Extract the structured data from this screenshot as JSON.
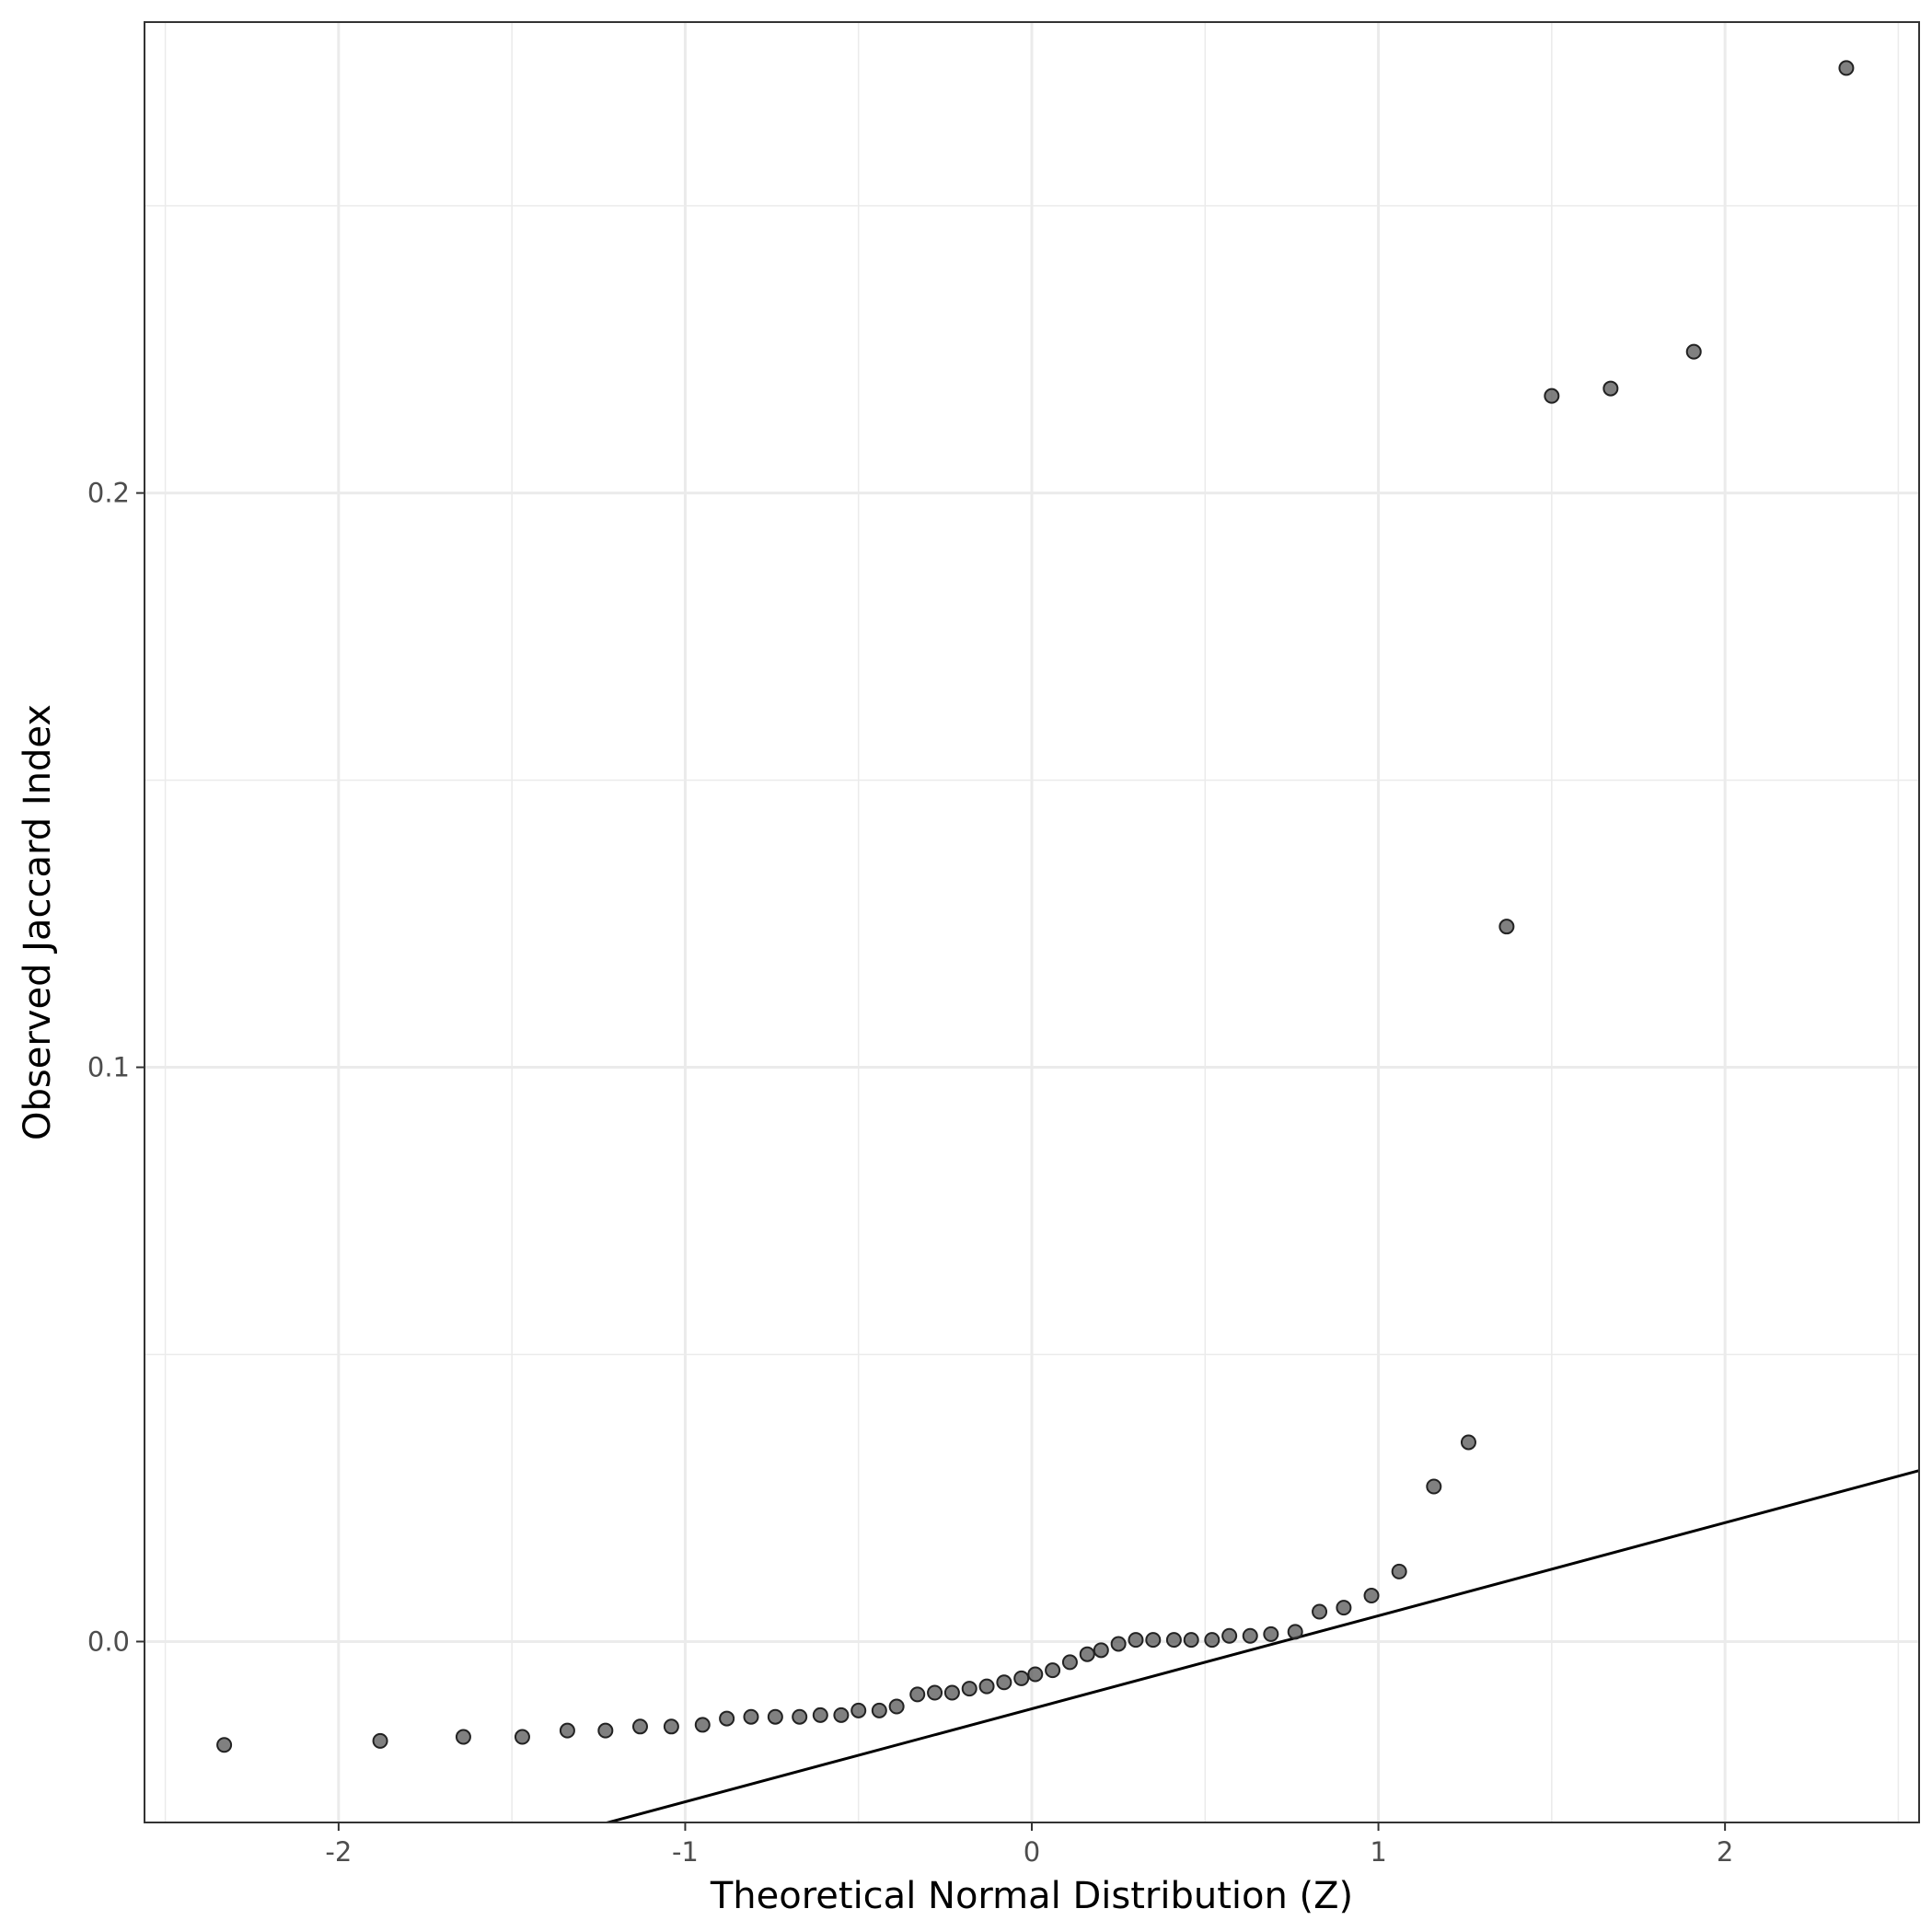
{
  "chart_data": {
    "type": "scatter",
    "xlabel": "Theoretical Normal Distribution (Z)",
    "ylabel": "Observed Jaccard Index",
    "xlim": [
      -2.56,
      2.56
    ],
    "ylim": [
      -0.0315,
      0.282
    ],
    "x_ticks": [
      -2,
      -1,
      0,
      1,
      2
    ],
    "x_tick_labels": [
      "-2",
      "-1",
      "0",
      "1",
      "2"
    ],
    "y_ticks": [
      0.0,
      0.1,
      0.2
    ],
    "y_tick_labels": [
      "0.0",
      "0.1",
      "0.2"
    ],
    "grid": true,
    "reference_line": {
      "intercept": -0.0117,
      "slope": 0.0162
    },
    "points_color": "#555555",
    "line_color": "#000000",
    "series": [
      {
        "x": [
          -2.33,
          -1.88,
          -1.64,
          -1.47,
          -1.34,
          -1.23,
          -1.13,
          -1.04,
          -0.95,
          -0.88,
          -0.81,
          -0.74,
          -0.67,
          -0.61,
          -0.55,
          -0.5,
          -0.44,
          -0.39,
          -0.33,
          -0.28,
          -0.23,
          -0.18,
          -0.13,
          -0.08,
          -0.03,
          0.01,
          0.06,
          0.11,
          0.16,
          0.2,
          0.25,
          0.3,
          0.35,
          0.41,
          0.46,
          0.52,
          0.57,
          0.63,
          0.69,
          0.76,
          0.83,
          0.9,
          0.98,
          1.06,
          1.16,
          1.26,
          1.37,
          1.5,
          1.67,
          1.91,
          2.35
        ],
        "y": [
          -0.018,
          -0.0173,
          -0.0166,
          -0.0166,
          -0.0155,
          -0.0155,
          -0.0148,
          -0.0148,
          -0.0145,
          -0.0134,
          -0.0131,
          -0.0131,
          -0.0131,
          -0.0128,
          -0.0128,
          -0.012,
          -0.012,
          -0.0113,
          -0.0092,
          -0.0089,
          -0.0089,
          -0.0082,
          -0.0078,
          -0.0071,
          -0.0064,
          -0.0057,
          -0.005,
          -0.0036,
          -0.0022,
          -0.0015,
          -0.0004,
          0.0003,
          0.0003,
          0.0003,
          0.0003,
          0.0003,
          0.001,
          0.001,
          0.0013,
          0.0017,
          0.0052,
          0.0059,
          0.008,
          0.0122,
          0.027,
          0.0347,
          0.1245,
          0.2169,
          0.2182,
          0.2246,
          0.274
        ]
      }
    ]
  }
}
